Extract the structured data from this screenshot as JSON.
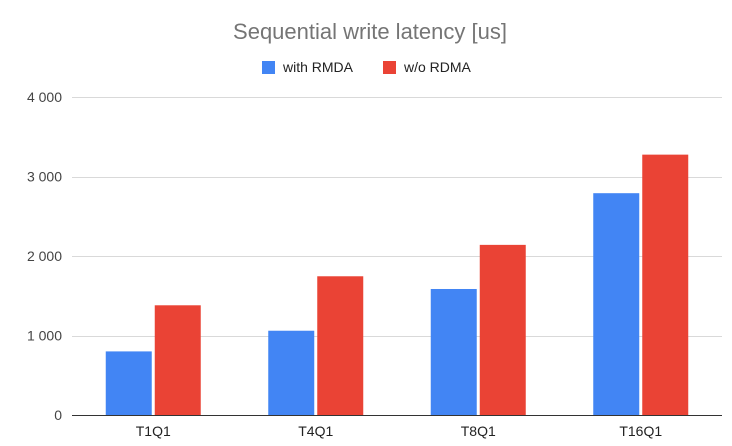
{
  "chart_data": {
    "type": "bar",
    "title": "Sequential write latency [us]",
    "xlabel": "",
    "ylabel": "",
    "categories": [
      "T1Q1",
      "T4Q1",
      "T8Q1",
      "T16Q1"
    ],
    "series": [
      {
        "name": "with RMDA",
        "color": "#4285f4",
        "values": [
          800,
          1060,
          1585,
          2790
        ]
      },
      {
        "name": "w/o RDMA",
        "color": "#ea4335",
        "values": [
          1380,
          1745,
          2140,
          3275
        ]
      }
    ],
    "ylim": [
      0,
      4000
    ],
    "yticks": [
      0,
      1000,
      2000,
      3000,
      4000
    ],
    "ytick_labels": [
      "0",
      "1 000",
      "2 000",
      "3 000",
      "4 000"
    ],
    "grid": true,
    "legend_position": "top-center"
  }
}
